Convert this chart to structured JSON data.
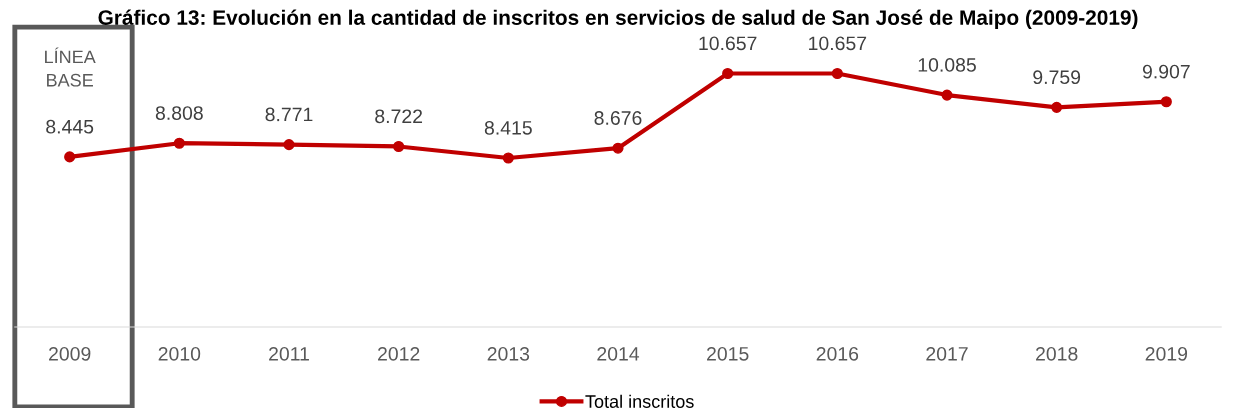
{
  "chart_data": {
    "type": "line",
    "title": "Gráfico 13: Evolución en la cantidad de inscritos en servicios de salud de San José de Maipo (2009-2019)",
    "categories": [
      "2009",
      "2010",
      "2011",
      "2012",
      "2013",
      "2014",
      "2015",
      "2016",
      "2017",
      "2018",
      "2019"
    ],
    "series": [
      {
        "name": "Total inscritos",
        "color": "#c00000",
        "values": [
          8445,
          8808,
          8771,
          8722,
          8415,
          8676,
          10657,
          10657,
          10085,
          9759,
          9907
        ],
        "value_labels": [
          "8.445",
          "8.808",
          "8.771",
          "8.722",
          "8.415",
          "8.676",
          "10.657",
          "10.657",
          "10.085",
          "9.759",
          "9.907"
        ]
      }
    ],
    "tick_labels": "x",
    "grid": false,
    "legend": "bottom",
    "marker": "circle",
    "line_style": "solid",
    "annotations": [
      "LÍNEA BASE"
    ]
  }
}
